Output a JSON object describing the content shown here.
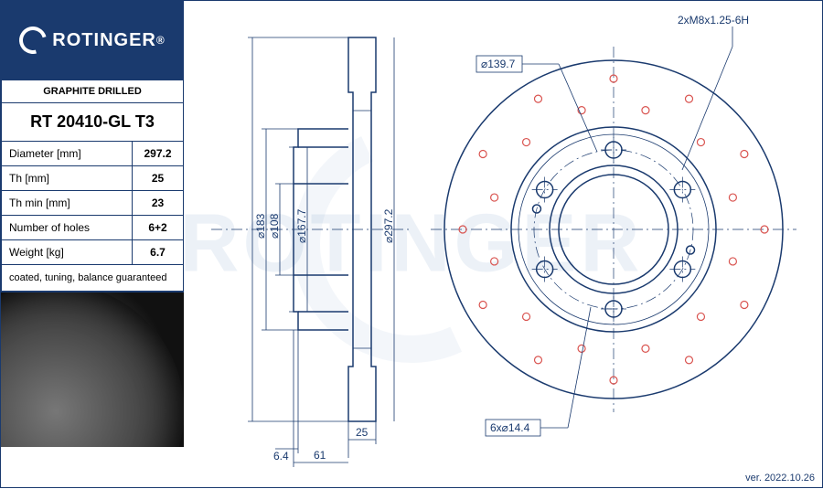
{
  "brand": "ROTINGER",
  "registered": "®",
  "subtitle": "GRAPHITE DRILLED",
  "part_number": "RT 20410-GL T3",
  "specs": [
    {
      "label": "Diameter [mm]",
      "value": "297.2"
    },
    {
      "label": "Th [mm]",
      "value": "25"
    },
    {
      "label": "Th min [mm]",
      "value": "23"
    },
    {
      "label": "Number of holes",
      "value": "6+2"
    },
    {
      "label": "Weight [kg]",
      "value": "6.7"
    }
  ],
  "note": "coated, tuning, balance guaranteed",
  "version": "ver. 2022.10.26",
  "drawing": {
    "colors": {
      "line": "#1a3a6e",
      "drill": "#d9534f",
      "background": "#ffffff"
    },
    "side_view": {
      "outer_dia_label": "⌀297.2",
      "dia_labels": [
        "⌀183",
        "⌀108",
        "⌀167.7"
      ],
      "thickness_label": "25",
      "hub_depth_label": "61",
      "flange_label": "6.4"
    },
    "front_view": {
      "outer_dia": 297.2,
      "bolt_circle_label": "⌀139.7",
      "bolt_hole_label": "6x⌀14.4",
      "thread_label": "2xM8x1.25-6H",
      "bolt_holes": 6,
      "drill_holes_per_ring": 12,
      "drill_rings": 2,
      "drill_color": "#d9534f"
    }
  }
}
